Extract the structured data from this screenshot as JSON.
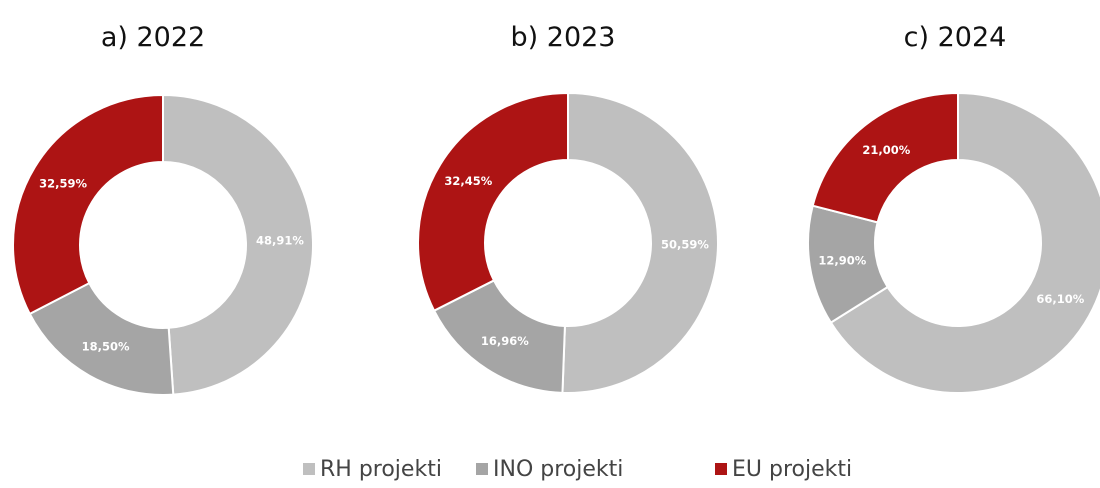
{
  "chart_data": [
    {
      "type": "pie",
      "donut": true,
      "title": "a) 2022",
      "categories": [
        "RH projekti",
        "INO projekti",
        "EU projekti"
      ],
      "values": [
        48.91,
        18.5,
        32.59
      ],
      "value_labels": [
        "48,91%",
        "18,50%",
        "32,59%"
      ],
      "colors": [
        "#bfbfbf",
        "#a5a5a5",
        "#ad1414"
      ]
    },
    {
      "type": "pie",
      "donut": true,
      "title": "b) 2023",
      "categories": [
        "RH projekti",
        "INO projekti",
        "EU projekti"
      ],
      "values": [
        50.59,
        16.96,
        32.45
      ],
      "value_labels": [
        "50,59%",
        "16,96%",
        "32,45%"
      ],
      "colors": [
        "#bfbfbf",
        "#a5a5a5",
        "#ad1414"
      ]
    },
    {
      "type": "pie",
      "donut": true,
      "title": "c) 2024",
      "categories": [
        "RH projekti",
        "INO projekti",
        "EU projekti"
      ],
      "values": [
        66.1,
        12.9,
        21.0
      ],
      "value_labels": [
        "66,10%",
        "12,90%",
        "21,00%"
      ],
      "colors": [
        "#bfbfbf",
        "#a5a5a5",
        "#ad1414"
      ]
    }
  ]
}
